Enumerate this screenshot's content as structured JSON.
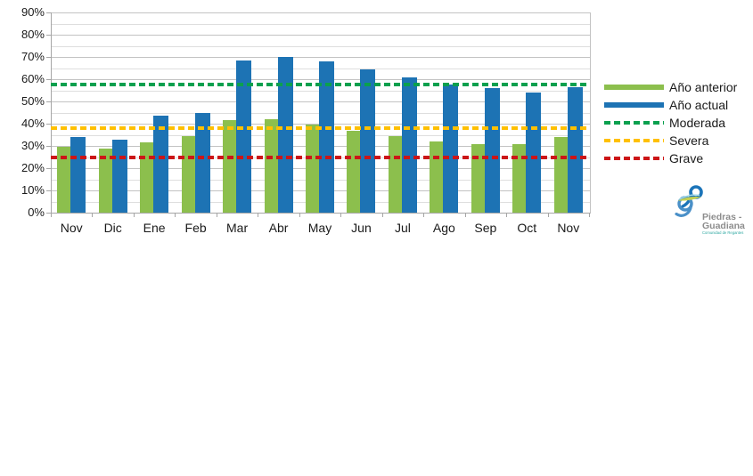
{
  "chart_data": {
    "type": "bar",
    "title": "",
    "categories": [
      "Nov",
      "Dic",
      "Ene",
      "Feb",
      "Mar",
      "Abr",
      "May",
      "Jun",
      "Jul",
      "Ago",
      "Sep",
      "Oct",
      "Nov"
    ],
    "series": [
      {
        "name": "Año anterior",
        "color": "#8CBF4D",
        "values": [
          29.5,
          29,
          31.5,
          34.5,
          41.5,
          42,
          39.5,
          37,
          34.5,
          32,
          31,
          31,
          34
        ]
      },
      {
        "name": "Año actual",
        "color": "#1D73B4",
        "values": [
          34,
          33,
          43.5,
          45,
          68.5,
          70,
          68,
          64.5,
          61,
          57.5,
          56,
          54,
          56.5
        ]
      }
    ],
    "thresholds": [
      {
        "name": "Moderada",
        "color": "#0AA04E",
        "value": 57.5
      },
      {
        "name": "Severa",
        "color": "#FFC000",
        "value": 38
      },
      {
        "name": "Grave",
        "color": "#CC1517",
        "value": 25
      }
    ],
    "ylim": [
      0,
      90
    ],
    "ytick_step_major": 10,
    "ytick_step_minor": 5,
    "ytick_labels": [
      "0%",
      "10%",
      "20%",
      "30%",
      "40%",
      "50%",
      "60%",
      "70%",
      "80%",
      "90%"
    ],
    "unit": "%",
    "grid": "horizontal, major + minor",
    "legend_position": "right"
  },
  "legend_swatch_style": {
    "series": "bar",
    "thresholds": "dotted-line"
  },
  "logo": {
    "line1": "Piedras -",
    "line2": "Guadiana",
    "tagline": "Comunidad de Regantes"
  }
}
